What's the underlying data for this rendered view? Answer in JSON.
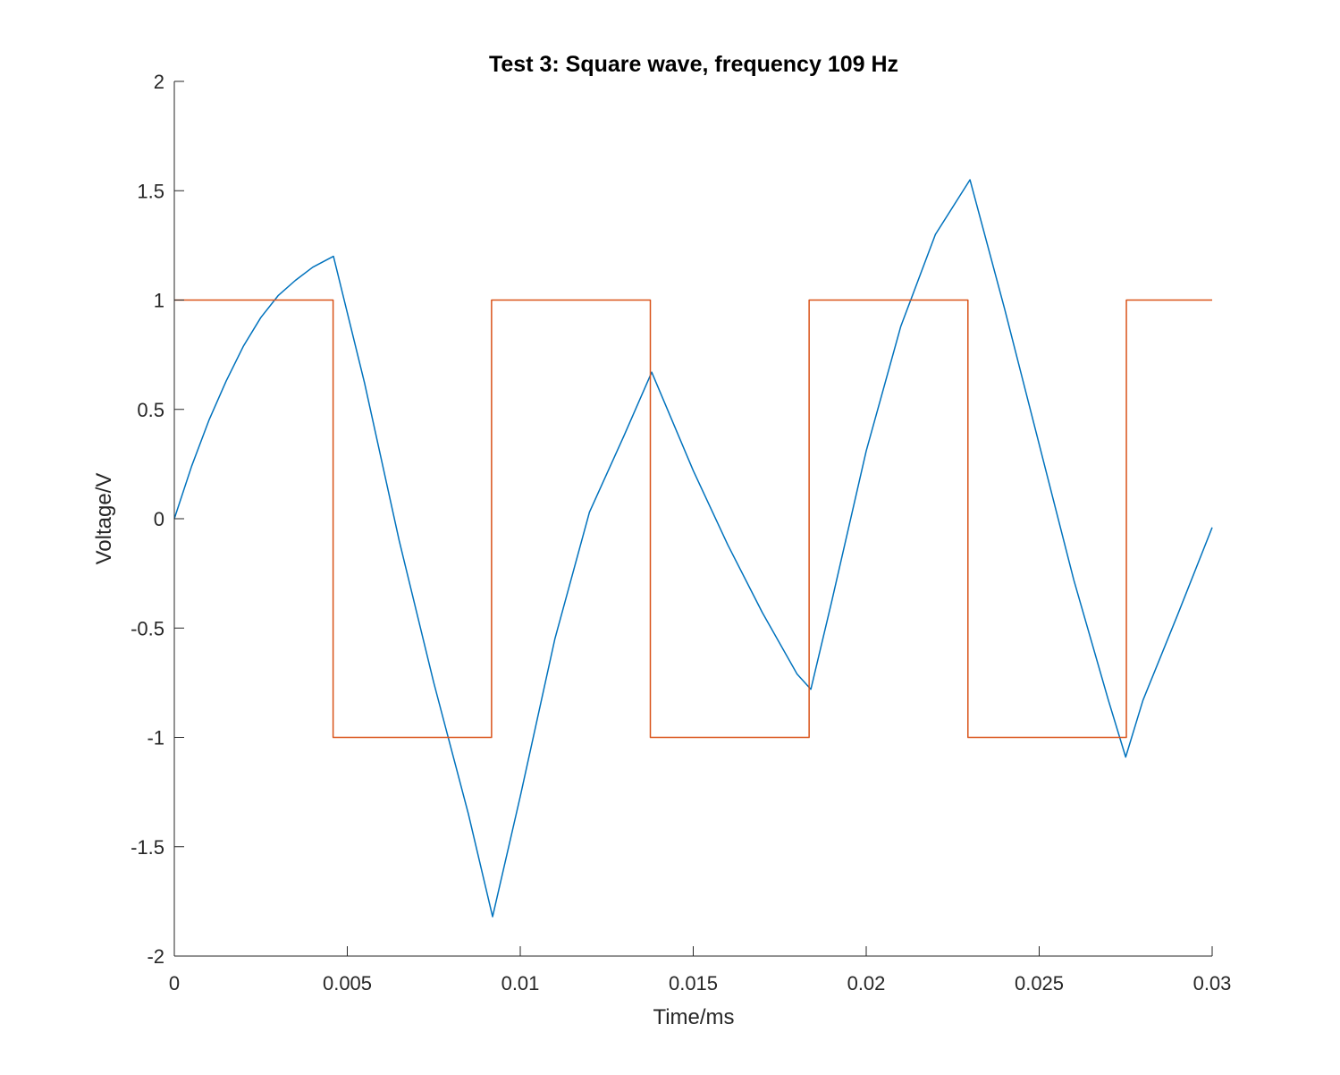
{
  "chart_data": {
    "type": "line",
    "title": "Test 3: Square wave, frequency 109 Hz",
    "xlabel": "Time/ms",
    "ylabel": "Voltage/V",
    "xlim": [
      0,
      0.03
    ],
    "ylim": [
      -2,
      2
    ],
    "grid": false,
    "x_ticks": [
      0,
      0.005,
      0.01,
      0.015,
      0.02,
      0.025,
      0.03
    ],
    "x_tick_labels": [
      "0",
      "0.005",
      "0.01",
      "0.015",
      "0.02",
      "0.025",
      "0.03"
    ],
    "y_ticks": [
      -2,
      -1.5,
      -1,
      -0.5,
      0,
      0.5,
      1,
      1.5,
      2
    ],
    "y_tick_labels": [
      "-2",
      "-1.5",
      "-1",
      "-0.5",
      "0",
      "0.5",
      "1",
      "1.5",
      "2"
    ],
    "series": [
      {
        "color": "#0072BD",
        "points": [
          [
            0,
            0
          ],
          [
            0.0005,
            0.24
          ],
          [
            0.001,
            0.45
          ],
          [
            0.0015,
            0.63
          ],
          [
            0.002,
            0.79
          ],
          [
            0.0025,
            0.92
          ],
          [
            0.003,
            1.02
          ],
          [
            0.0035,
            1.09
          ],
          [
            0.004,
            1.15
          ],
          [
            0.0046,
            1.2
          ],
          [
            0.0055,
            0.62
          ],
          [
            0.0065,
            -0.1
          ],
          [
            0.0075,
            -0.75
          ],
          [
            0.0085,
            -1.35
          ],
          [
            0.0092,
            -1.82
          ],
          [
            0.01,
            -1.27
          ],
          [
            0.011,
            -0.55
          ],
          [
            0.012,
            0.03
          ],
          [
            0.013,
            0.38
          ],
          [
            0.0138,
            0.67
          ],
          [
            0.015,
            0.22
          ],
          [
            0.016,
            -0.12
          ],
          [
            0.017,
            -0.43
          ],
          [
            0.018,
            -0.71
          ],
          [
            0.0184,
            -0.78
          ],
          [
            0.019,
            -0.38
          ],
          [
            0.02,
            0.31
          ],
          [
            0.021,
            0.88
          ],
          [
            0.022,
            1.3
          ],
          [
            0.023,
            1.55
          ],
          [
            0.024,
            0.96
          ],
          [
            0.025,
            0.34
          ],
          [
            0.026,
            -0.28
          ],
          [
            0.027,
            -0.83
          ],
          [
            0.0275,
            -1.09
          ],
          [
            0.028,
            -0.83
          ],
          [
            0.029,
            -0.44
          ],
          [
            0.03,
            -0.04
          ]
        ]
      },
      {
        "color": "#D95319",
        "points": [
          [
            0,
            1
          ],
          [
            0.00459,
            1
          ],
          [
            0.00459,
            -1
          ],
          [
            0.00917,
            -1
          ],
          [
            0.00917,
            1
          ],
          [
            0.01376,
            1
          ],
          [
            0.01376,
            -1
          ],
          [
            0.01835,
            -1
          ],
          [
            0.01835,
            1
          ],
          [
            0.02294,
            1
          ],
          [
            0.02294,
            -1
          ],
          [
            0.02752,
            -1
          ],
          [
            0.02752,
            1
          ],
          [
            0.03,
            1
          ]
        ]
      }
    ]
  }
}
